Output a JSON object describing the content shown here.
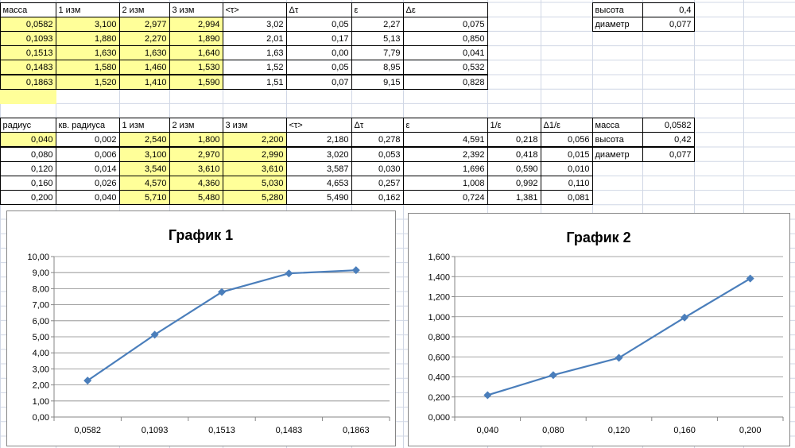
{
  "table1": {
    "header": [
      "масса",
      "1 изм",
      "2 изм",
      "3 изм",
      "<τ>",
      "Δτ",
      "ε",
      "Δε"
    ],
    "rows": [
      [
        "0,0582",
        "3,100",
        "2,977",
        "2,994",
        "3,02",
        "0,05",
        "2,27",
        "0,075"
      ],
      [
        "0,1093",
        "1,880",
        "2,270",
        "1,890",
        "2,01",
        "0,17",
        "5,13",
        "0,850"
      ],
      [
        "0,1513",
        "1,630",
        "1,630",
        "1,640",
        "1,63",
        "0,00",
        "7,79",
        "0,041"
      ],
      [
        "0,1483",
        "1,580",
        "1,460",
        "1,530",
        "1,52",
        "0,05",
        "8,95",
        "0,532"
      ],
      [
        "0,1863",
        "1,520",
        "1,410",
        "1,590",
        "1,51",
        "0,07",
        "9,15",
        "0,828"
      ]
    ]
  },
  "side1": {
    "rows": [
      [
        "высота",
        "0,4"
      ],
      [
        "диаметр",
        "0,077"
      ]
    ]
  },
  "table2": {
    "header": [
      "радиус",
      "кв. радиуса",
      "1 изм",
      "2 изм",
      "3 изм",
      "<τ>",
      "Δτ",
      "ε",
      "1/ε",
      "Δ1/ε"
    ],
    "rows": [
      [
        "0,040",
        "0,002",
        "2,540",
        "1,800",
        "2,200",
        "2,180",
        "0,278",
        "4,591",
        "0,218",
        "0,056"
      ],
      [
        "0,080",
        "0,006",
        "3,100",
        "2,970",
        "2,990",
        "3,020",
        "0,053",
        "2,392",
        "0,418",
        "0,015"
      ],
      [
        "0,120",
        "0,014",
        "3,540",
        "3,610",
        "3,610",
        "3,587",
        "0,030",
        "1,696",
        "0,590",
        "0,010"
      ],
      [
        "0,160",
        "0,026",
        "4,570",
        "4,360",
        "5,030",
        "4,653",
        "0,257",
        "1,008",
        "0,992",
        "0,110"
      ],
      [
        "0,200",
        "0,040",
        "5,710",
        "5,480",
        "5,280",
        "5,490",
        "0,162",
        "0,724",
        "1,381",
        "0,081"
      ]
    ]
  },
  "side2": {
    "rows": [
      [
        "масса",
        "0,0582"
      ],
      [
        "высота",
        "0,42"
      ],
      [
        "диаметр",
        "0,077"
      ]
    ]
  },
  "chart_data": [
    {
      "type": "line",
      "title": "График 1",
      "categories": [
        "0,0582",
        "0,1093",
        "0,1513",
        "0,1483",
        "0,1863"
      ],
      "values": [
        2.27,
        5.13,
        7.79,
        8.95,
        9.15
      ],
      "color": "#4a7ebb",
      "ylim": [
        0,
        10
      ],
      "yticks": [
        {
          "value": 0,
          "label": "0,00"
        },
        {
          "value": 1,
          "label": "1,00"
        },
        {
          "value": 2,
          "label": "2,00"
        },
        {
          "value": 3,
          "label": "3,00"
        },
        {
          "value": 4,
          "label": "4,00"
        },
        {
          "value": 5,
          "label": "5,00"
        },
        {
          "value": 6,
          "label": "6,00"
        },
        {
          "value": 7,
          "label": "7,00"
        },
        {
          "value": 8,
          "label": "8,00"
        },
        {
          "value": 9,
          "label": "9,00"
        },
        {
          "value": 10,
          "label": "10,00"
        }
      ],
      "grid": true
    },
    {
      "type": "line",
      "title": "График 2",
      "categories": [
        "0,040",
        "0,080",
        "0,120",
        "0,160",
        "0,200"
      ],
      "values": [
        0.218,
        0.418,
        0.59,
        0.992,
        1.381
      ],
      "color": "#4a7ebb",
      "ylim": [
        0,
        1.6
      ],
      "yticks": [
        {
          "value": 0,
          "label": "0,000"
        },
        {
          "value": 0.2,
          "label": "0,200"
        },
        {
          "value": 0.4,
          "label": "0,400"
        },
        {
          "value": 0.6,
          "label": "0,600"
        },
        {
          "value": 0.8,
          "label": "0,800"
        },
        {
          "value": 1,
          "label": "1,000"
        },
        {
          "value": 1.2,
          "label": "1,200"
        },
        {
          "value": 1.4,
          "label": "1,400"
        },
        {
          "value": 1.6,
          "label": "1,600"
        }
      ],
      "grid": true
    }
  ]
}
